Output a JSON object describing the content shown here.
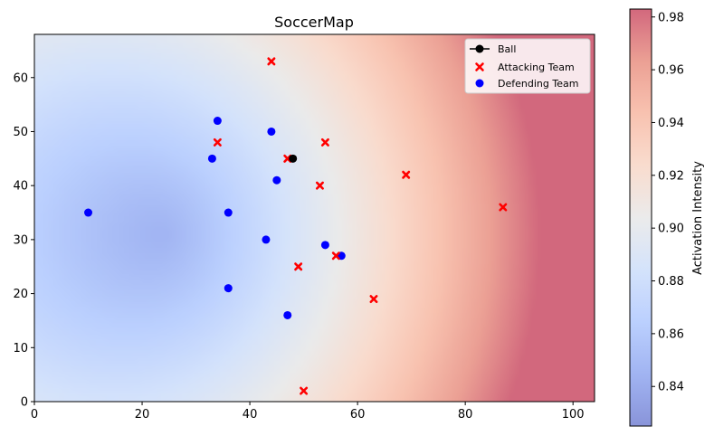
{
  "chart_data": {
    "type": "scatter",
    "title": "SoccerMap",
    "xlim": [
      0,
      104
    ],
    "ylim": [
      0,
      68
    ],
    "xticks": [
      "0",
      "20",
      "40",
      "60",
      "80",
      "100"
    ],
    "yticks": [
      "0",
      "10",
      "20",
      "30",
      "40",
      "50",
      "60"
    ],
    "colorbar": {
      "label": "Activation Intensity",
      "range": [
        0.825,
        0.983
      ],
      "ticks": [
        "0.84",
        "0.86",
        "0.88",
        "0.90",
        "0.92",
        "0.94",
        "0.96",
        "0.98"
      ],
      "colormap": "coolwarm",
      "alpha": 0.6
    },
    "heatmap": {
      "min_center": [
        24,
        31
      ],
      "description": "activation increases with distance from the defensive centroid, strongest toward the right edge"
    },
    "legend": {
      "placement": "top-right",
      "entries": [
        "Ball",
        "Attacking Team",
        "Defending Team"
      ]
    },
    "series": [
      {
        "name": "Ball",
        "marker": "circle-line",
        "color": "#000000",
        "points": [
          [
            48,
            45
          ]
        ]
      },
      {
        "name": "Attacking Team",
        "marker": "x",
        "color": "#ff0000",
        "points": [
          [
            44,
            63
          ],
          [
            34,
            48
          ],
          [
            47,
            45
          ],
          [
            54,
            48
          ],
          [
            69,
            42
          ],
          [
            53,
            40
          ],
          [
            87,
            36
          ],
          [
            56,
            27
          ],
          [
            49,
            25
          ],
          [
            63,
            19
          ],
          [
            50,
            2
          ]
        ]
      },
      {
        "name": "Defending Team",
        "marker": "circle",
        "color": "#0000ff",
        "points": [
          [
            34,
            52
          ],
          [
            44,
            50
          ],
          [
            33,
            45
          ],
          [
            45,
            41
          ],
          [
            10,
            35
          ],
          [
            36,
            35
          ],
          [
            43,
            30
          ],
          [
            54,
            29
          ],
          [
            57,
            27
          ],
          [
            36,
            21
          ],
          [
            47,
            16
          ]
        ]
      }
    ]
  }
}
